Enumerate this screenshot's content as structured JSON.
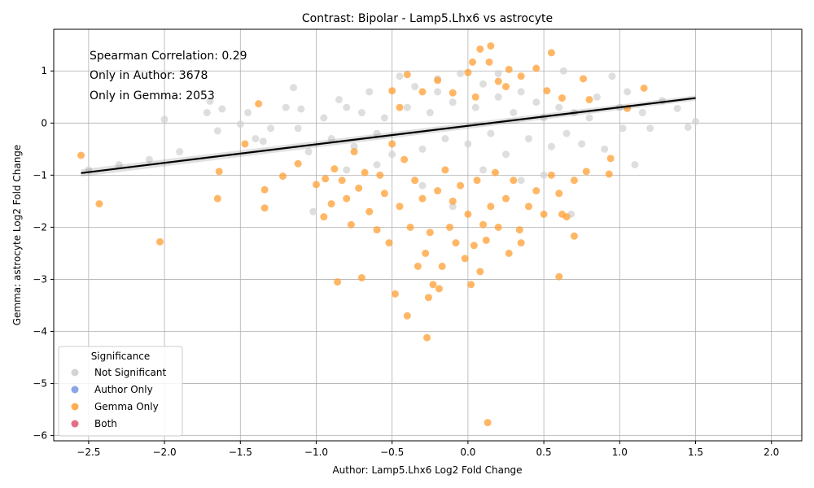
{
  "chart_data": {
    "type": "scatter",
    "title": "Contrast: Bipolar - Lamp5.Lhx6 vs astrocyte",
    "xlabel": "Author: Lamp5.Lhx6 Log2 Fold Change",
    "ylabel": "Gemma: astrocyte Log2 Fold Change",
    "xlim": [
      -2.73,
      2.2
    ],
    "ylim": [
      -6.1,
      1.8
    ],
    "x_ticks": [
      -2.5,
      -2.0,
      -1.5,
      -1.0,
      -0.5,
      0.0,
      0.5,
      1.0,
      1.5,
      2.0
    ],
    "x_tick_labels": [
      "−2.5",
      "−2.0",
      "−1.5",
      "−1.0",
      "−0.5",
      "0.0",
      "0.5",
      "1.0",
      "1.5",
      "2.0"
    ],
    "y_ticks": [
      -6,
      -5,
      -4,
      -3,
      -2,
      -1,
      0,
      1
    ],
    "y_tick_labels": [
      "−6",
      "−5",
      "−4",
      "−3",
      "−2",
      "−1",
      "0",
      "1"
    ],
    "grid": true,
    "annotations": [
      "Spearman Correlation: 0.29",
      "Only in Author: 3678",
      "Only in Gemma: 2053"
    ],
    "regression_line": {
      "x": [
        -2.55,
        1.5
      ],
      "y": [
        -0.96,
        0.48
      ]
    },
    "legend": {
      "title": "Significance",
      "placement": "lower-left",
      "entries": [
        {
          "name": "Not Significant",
          "color": "#d3d3d3"
        },
        {
          "name": "Author Only",
          "color": "#6f8fe0"
        },
        {
          "name": "Gemma Only",
          "color": "#ff9f33"
        },
        {
          "name": "Both",
          "color": "#e0566e"
        }
      ]
    },
    "series": [
      {
        "name": "Not Significant",
        "color": "#d3d3d3",
        "points": [
          [
            -2.0,
            0.07
          ],
          [
            -1.72,
            0.2
          ],
          [
            -1.7,
            0.42
          ],
          [
            -1.62,
            0.27
          ],
          [
            -1.65,
            -0.15
          ],
          [
            -1.5,
            -0.02
          ],
          [
            -1.45,
            0.2
          ],
          [
            -1.4,
            -0.3
          ],
          [
            -1.35,
            -0.35
          ],
          [
            -1.3,
            -0.1
          ],
          [
            -1.2,
            0.3
          ],
          [
            -1.15,
            0.68
          ],
          [
            -1.12,
            -0.1
          ],
          [
            -1.1,
            0.27
          ],
          [
            -1.05,
            -0.55
          ],
          [
            -1.02,
            -1.7
          ],
          [
            -0.95,
            0.1
          ],
          [
            -0.9,
            -0.3
          ],
          [
            -0.85,
            0.45
          ],
          [
            -0.8,
            0.3
          ],
          [
            -0.75,
            -0.45
          ],
          [
            -0.7,
            0.2
          ],
          [
            -0.65,
            0.6
          ],
          [
            -0.6,
            -0.2
          ],
          [
            -0.55,
            0.1
          ],
          [
            -0.5,
            -0.6
          ],
          [
            -0.45,
            0.9
          ],
          [
            -0.4,
            0.3
          ],
          [
            -0.35,
            0.7
          ],
          [
            -0.3,
            -0.5
          ],
          [
            -0.25,
            0.2
          ],
          [
            -0.2,
            0.6
          ],
          [
            -0.15,
            -0.3
          ],
          [
            -0.1,
            0.4
          ],
          [
            -0.05,
            0.95
          ],
          [
            0.0,
            -0.4
          ],
          [
            0.05,
            0.3
          ],
          [
            0.1,
            0.75
          ],
          [
            0.15,
            -0.2
          ],
          [
            0.2,
            0.5
          ],
          [
            0.25,
            -0.6
          ],
          [
            0.3,
            0.2
          ],
          [
            0.35,
            0.6
          ],
          [
            0.4,
            -0.3
          ],
          [
            0.45,
            0.4
          ],
          [
            0.5,
            0.1
          ],
          [
            0.55,
            -0.45
          ],
          [
            0.6,
            0.3
          ],
          [
            0.63,
            1.0
          ],
          [
            0.65,
            -0.2
          ],
          [
            0.7,
            0.2
          ],
          [
            0.75,
            -0.4
          ],
          [
            0.8,
            0.1
          ],
          [
            0.85,
            0.5
          ],
          [
            0.9,
            -0.5
          ],
          [
            0.95,
            0.9
          ],
          [
            1.0,
            0.3
          ],
          [
            1.02,
            -0.1
          ],
          [
            1.05,
            0.6
          ],
          [
            1.1,
            -0.8
          ],
          [
            1.15,
            0.2
          ],
          [
            1.2,
            -0.1
          ],
          [
            1.28,
            0.43
          ],
          [
            1.38,
            0.28
          ],
          [
            1.45,
            -0.08
          ],
          [
            1.5,
            0.03
          ],
          [
            -2.5,
            -0.9
          ],
          [
            -2.3,
            -0.8
          ],
          [
            -2.1,
            -0.7
          ],
          [
            -1.9,
            -0.55
          ],
          [
            -0.3,
            -1.2
          ],
          [
            -0.1,
            -1.6
          ],
          [
            0.1,
            -0.9
          ],
          [
            0.35,
            -1.1
          ],
          [
            0.68,
            -1.75
          ],
          [
            -0.6,
            -0.8
          ],
          [
            -0.8,
            -0.9
          ],
          [
            0.5,
            -1.0
          ],
          [
            -0.2,
            0.85
          ],
          [
            0.2,
            0.95
          ]
        ]
      },
      {
        "name": "Gemma Only",
        "color": "#ff9f33",
        "points": [
          [
            -2.55,
            -0.62
          ],
          [
            -2.43,
            -1.55
          ],
          [
            -2.03,
            -2.28
          ],
          [
            -1.65,
            -1.45
          ],
          [
            -1.64,
            -0.93
          ],
          [
            -1.47,
            -0.4
          ],
          [
            -1.38,
            0.37
          ],
          [
            -1.34,
            -1.28
          ],
          [
            -1.34,
            -1.63
          ],
          [
            -1.22,
            -1.02
          ],
          [
            -1.12,
            -0.78
          ],
          [
            -1.0,
            -1.18
          ],
          [
            -0.95,
            -1.8
          ],
          [
            -0.94,
            -1.07
          ],
          [
            -0.9,
            -1.55
          ],
          [
            -0.88,
            -0.88
          ],
          [
            -0.86,
            -3.05
          ],
          [
            -0.83,
            -1.1
          ],
          [
            -0.8,
            -1.45
          ],
          [
            -0.77,
            -1.95
          ],
          [
            -0.75,
            -0.55
          ],
          [
            -0.72,
            -1.25
          ],
          [
            -0.7,
            -2.97
          ],
          [
            -0.68,
            -0.95
          ],
          [
            -0.65,
            -1.7
          ],
          [
            -0.6,
            -2.05
          ],
          [
            -0.58,
            -1.0
          ],
          [
            -0.55,
            -1.35
          ],
          [
            -0.52,
            -2.3
          ],
          [
            -0.5,
            -0.4
          ],
          [
            -0.48,
            -3.28
          ],
          [
            -0.45,
            -1.6
          ],
          [
            -0.42,
            -0.7
          ],
          [
            -0.4,
            -3.7
          ],
          [
            -0.38,
            -2.0
          ],
          [
            -0.35,
            -1.1
          ],
          [
            -0.33,
            -2.75
          ],
          [
            -0.3,
            -1.45
          ],
          [
            -0.28,
            -2.5
          ],
          [
            -0.27,
            -4.12
          ],
          [
            -0.26,
            -3.35
          ],
          [
            -0.25,
            -2.1
          ],
          [
            -0.23,
            -3.1
          ],
          [
            -0.2,
            -1.3
          ],
          [
            -0.19,
            -3.18
          ],
          [
            -0.17,
            -2.75
          ],
          [
            -0.15,
            -0.9
          ],
          [
            -0.12,
            -2.0
          ],
          [
            -0.1,
            -1.5
          ],
          [
            -0.08,
            -2.3
          ],
          [
            -0.05,
            -1.2
          ],
          [
            -0.02,
            -2.6
          ],
          [
            0.0,
            -1.75
          ],
          [
            0.02,
            -3.1
          ],
          [
            0.04,
            -2.35
          ],
          [
            0.06,
            -1.1
          ],
          [
            0.08,
            -2.85
          ],
          [
            0.1,
            -1.95
          ],
          [
            0.12,
            -2.25
          ],
          [
            0.13,
            -5.75
          ],
          [
            0.15,
            -1.6
          ],
          [
            0.18,
            -0.95
          ],
          [
            0.2,
            -2.0
          ],
          [
            0.25,
            -1.45
          ],
          [
            0.27,
            -2.5
          ],
          [
            0.3,
            -1.1
          ],
          [
            0.34,
            -2.05
          ],
          [
            0.35,
            -2.3
          ],
          [
            0.4,
            -1.6
          ],
          [
            0.45,
            -1.3
          ],
          [
            0.5,
            -1.75
          ],
          [
            0.55,
            -1.0
          ],
          [
            0.6,
            -2.95
          ],
          [
            0.6,
            -1.35
          ],
          [
            0.62,
            -1.75
          ],
          [
            0.65,
            -1.8
          ],
          [
            0.7,
            -1.1
          ],
          [
            0.7,
            -2.17
          ],
          [
            0.78,
            -0.93
          ],
          [
            0.93,
            -0.98
          ],
          [
            0.94,
            -0.68
          ],
          [
            -0.5,
            0.62
          ],
          [
            -0.4,
            0.93
          ],
          [
            -0.3,
            0.6
          ],
          [
            -0.2,
            0.82
          ],
          [
            -0.1,
            0.58
          ],
          [
            0.0,
            0.97
          ],
          [
            0.03,
            1.17
          ],
          [
            0.08,
            1.42
          ],
          [
            0.15,
            1.48
          ],
          [
            0.14,
            1.17
          ],
          [
            0.2,
            0.8
          ],
          [
            0.27,
            1.03
          ],
          [
            0.35,
            0.9
          ],
          [
            0.45,
            1.05
          ],
          [
            0.52,
            0.62
          ],
          [
            0.55,
            1.35
          ],
          [
            0.62,
            0.48
          ],
          [
            0.76,
            0.85
          ],
          [
            0.8,
            0.45
          ],
          [
            1.05,
            0.28
          ],
          [
            1.16,
            0.67
          ],
          [
            -0.45,
            0.3
          ],
          [
            0.05,
            0.5
          ],
          [
            0.25,
            0.7
          ]
        ]
      },
      {
        "name": "Author Only",
        "color": "#6f8fe0",
        "points": []
      },
      {
        "name": "Both",
        "color": "#e0566e",
        "points": []
      }
    ]
  }
}
